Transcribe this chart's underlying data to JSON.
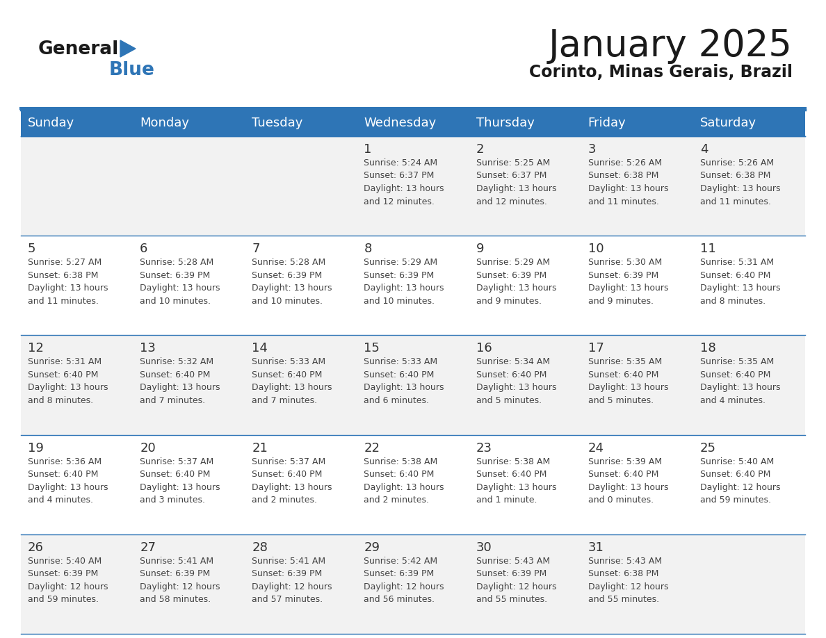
{
  "title": "January 2025",
  "subtitle": "Corinto, Minas Gerais, Brazil",
  "days_of_week": [
    "Sunday",
    "Monday",
    "Tuesday",
    "Wednesday",
    "Thursday",
    "Friday",
    "Saturday"
  ],
  "header_bg": "#2E75B6",
  "header_text": "#FFFFFF",
  "cell_bg_odd": "#F2F2F2",
  "cell_bg_even": "#FFFFFF",
  "line_color": "#2E75B6",
  "text_color": "#444444",
  "day_num_color": "#333333",
  "calendar_data": [
    [
      {
        "day": null,
        "info": null
      },
      {
        "day": null,
        "info": null
      },
      {
        "day": null,
        "info": null
      },
      {
        "day": 1,
        "info": "Sunrise: 5:24 AM\nSunset: 6:37 PM\nDaylight: 13 hours\nand 12 minutes."
      },
      {
        "day": 2,
        "info": "Sunrise: 5:25 AM\nSunset: 6:37 PM\nDaylight: 13 hours\nand 12 minutes."
      },
      {
        "day": 3,
        "info": "Sunrise: 5:26 AM\nSunset: 6:38 PM\nDaylight: 13 hours\nand 11 minutes."
      },
      {
        "day": 4,
        "info": "Sunrise: 5:26 AM\nSunset: 6:38 PM\nDaylight: 13 hours\nand 11 minutes."
      }
    ],
    [
      {
        "day": 5,
        "info": "Sunrise: 5:27 AM\nSunset: 6:38 PM\nDaylight: 13 hours\nand 11 minutes."
      },
      {
        "day": 6,
        "info": "Sunrise: 5:28 AM\nSunset: 6:39 PM\nDaylight: 13 hours\nand 10 minutes."
      },
      {
        "day": 7,
        "info": "Sunrise: 5:28 AM\nSunset: 6:39 PM\nDaylight: 13 hours\nand 10 minutes."
      },
      {
        "day": 8,
        "info": "Sunrise: 5:29 AM\nSunset: 6:39 PM\nDaylight: 13 hours\nand 10 minutes."
      },
      {
        "day": 9,
        "info": "Sunrise: 5:29 AM\nSunset: 6:39 PM\nDaylight: 13 hours\nand 9 minutes."
      },
      {
        "day": 10,
        "info": "Sunrise: 5:30 AM\nSunset: 6:39 PM\nDaylight: 13 hours\nand 9 minutes."
      },
      {
        "day": 11,
        "info": "Sunrise: 5:31 AM\nSunset: 6:40 PM\nDaylight: 13 hours\nand 8 minutes."
      }
    ],
    [
      {
        "day": 12,
        "info": "Sunrise: 5:31 AM\nSunset: 6:40 PM\nDaylight: 13 hours\nand 8 minutes."
      },
      {
        "day": 13,
        "info": "Sunrise: 5:32 AM\nSunset: 6:40 PM\nDaylight: 13 hours\nand 7 minutes."
      },
      {
        "day": 14,
        "info": "Sunrise: 5:33 AM\nSunset: 6:40 PM\nDaylight: 13 hours\nand 7 minutes."
      },
      {
        "day": 15,
        "info": "Sunrise: 5:33 AM\nSunset: 6:40 PM\nDaylight: 13 hours\nand 6 minutes."
      },
      {
        "day": 16,
        "info": "Sunrise: 5:34 AM\nSunset: 6:40 PM\nDaylight: 13 hours\nand 5 minutes."
      },
      {
        "day": 17,
        "info": "Sunrise: 5:35 AM\nSunset: 6:40 PM\nDaylight: 13 hours\nand 5 minutes."
      },
      {
        "day": 18,
        "info": "Sunrise: 5:35 AM\nSunset: 6:40 PM\nDaylight: 13 hours\nand 4 minutes."
      }
    ],
    [
      {
        "day": 19,
        "info": "Sunrise: 5:36 AM\nSunset: 6:40 PM\nDaylight: 13 hours\nand 4 minutes."
      },
      {
        "day": 20,
        "info": "Sunrise: 5:37 AM\nSunset: 6:40 PM\nDaylight: 13 hours\nand 3 minutes."
      },
      {
        "day": 21,
        "info": "Sunrise: 5:37 AM\nSunset: 6:40 PM\nDaylight: 13 hours\nand 2 minutes."
      },
      {
        "day": 22,
        "info": "Sunrise: 5:38 AM\nSunset: 6:40 PM\nDaylight: 13 hours\nand 2 minutes."
      },
      {
        "day": 23,
        "info": "Sunrise: 5:38 AM\nSunset: 6:40 PM\nDaylight: 13 hours\nand 1 minute."
      },
      {
        "day": 24,
        "info": "Sunrise: 5:39 AM\nSunset: 6:40 PM\nDaylight: 13 hours\nand 0 minutes."
      },
      {
        "day": 25,
        "info": "Sunrise: 5:40 AM\nSunset: 6:40 PM\nDaylight: 12 hours\nand 59 minutes."
      }
    ],
    [
      {
        "day": 26,
        "info": "Sunrise: 5:40 AM\nSunset: 6:39 PM\nDaylight: 12 hours\nand 59 minutes."
      },
      {
        "day": 27,
        "info": "Sunrise: 5:41 AM\nSunset: 6:39 PM\nDaylight: 12 hours\nand 58 minutes."
      },
      {
        "day": 28,
        "info": "Sunrise: 5:41 AM\nSunset: 6:39 PM\nDaylight: 12 hours\nand 57 minutes."
      },
      {
        "day": 29,
        "info": "Sunrise: 5:42 AM\nSunset: 6:39 PM\nDaylight: 12 hours\nand 56 minutes."
      },
      {
        "day": 30,
        "info": "Sunrise: 5:43 AM\nSunset: 6:39 PM\nDaylight: 12 hours\nand 55 minutes."
      },
      {
        "day": 31,
        "info": "Sunrise: 5:43 AM\nSunset: 6:38 PM\nDaylight: 12 hours\nand 55 minutes."
      },
      {
        "day": null,
        "info": null
      }
    ]
  ],
  "logo_general_color": "#1a1a1a",
  "logo_blue_color": "#2E75B6",
  "logo_triangle_color": "#2E75B6"
}
